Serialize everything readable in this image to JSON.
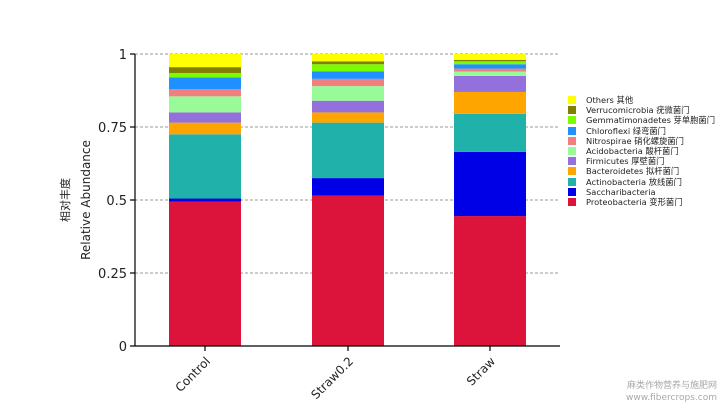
{
  "chart_data": {
    "type": "bar",
    "stacked": true,
    "categories": [
      "Control",
      "Straw0.2",
      "Straw"
    ],
    "ylabel_cn": "相对丰度",
    "ylabel": "Relative Abundance",
    "xlabel": "",
    "title": "",
    "ylim": [
      0,
      1
    ],
    "yticks": [
      "0",
      "0.25",
      "0.5",
      "0.75",
      "1"
    ],
    "grid": "dashed horizontal",
    "legend_position": "right",
    "series": [
      {
        "name": "Proteobacteria 变形菌门",
        "color": "#DC143C",
        "values": [
          0.495,
          0.515,
          0.445
        ]
      },
      {
        "name": "Saccharibacteria",
        "color": "#0000E6",
        "values": [
          0.01,
          0.06,
          0.22
        ]
      },
      {
        "name": "Actinobacteria 放线菌门",
        "color": "#20B2AA",
        "values": [
          0.22,
          0.19,
          0.13
        ]
      },
      {
        "name": "Bacteroidetes 拟杆菌门",
        "color": "#FFA500",
        "values": [
          0.04,
          0.035,
          0.075
        ]
      },
      {
        "name": "Firmicutes 厚壁菌门",
        "color": "#9370DB",
        "values": [
          0.035,
          0.04,
          0.055
        ]
      },
      {
        "name": "Acidobacteria 酸杆菌门",
        "color": "#98FB98",
        "values": [
          0.055,
          0.05,
          0.015
        ]
      },
      {
        "name": "Nitrospirae 硝化螺旋菌门",
        "color": "#F08080",
        "values": [
          0.025,
          0.025,
          0.01
        ]
      },
      {
        "name": "Chloroflexi 绿弯菌门",
        "color": "#1E90FF",
        "values": [
          0.04,
          0.025,
          0.015
        ]
      },
      {
        "name": "Gemmatimonadetes 芽单胞菌门",
        "color": "#7CFC00",
        "values": [
          0.015,
          0.025,
          0.01
        ]
      },
      {
        "name": "Verrucomicrobia 疣微菌门",
        "color": "#808000",
        "values": [
          0.02,
          0.01,
          0.005
        ]
      },
      {
        "name": "Others 其他",
        "color": "#FFFF00",
        "values": [
          0.045,
          0.025,
          0.02
        ]
      }
    ]
  },
  "watermark": {
    "line1": "麻类作物营养与施肥网",
    "line2": "www.fibercrops.com"
  }
}
